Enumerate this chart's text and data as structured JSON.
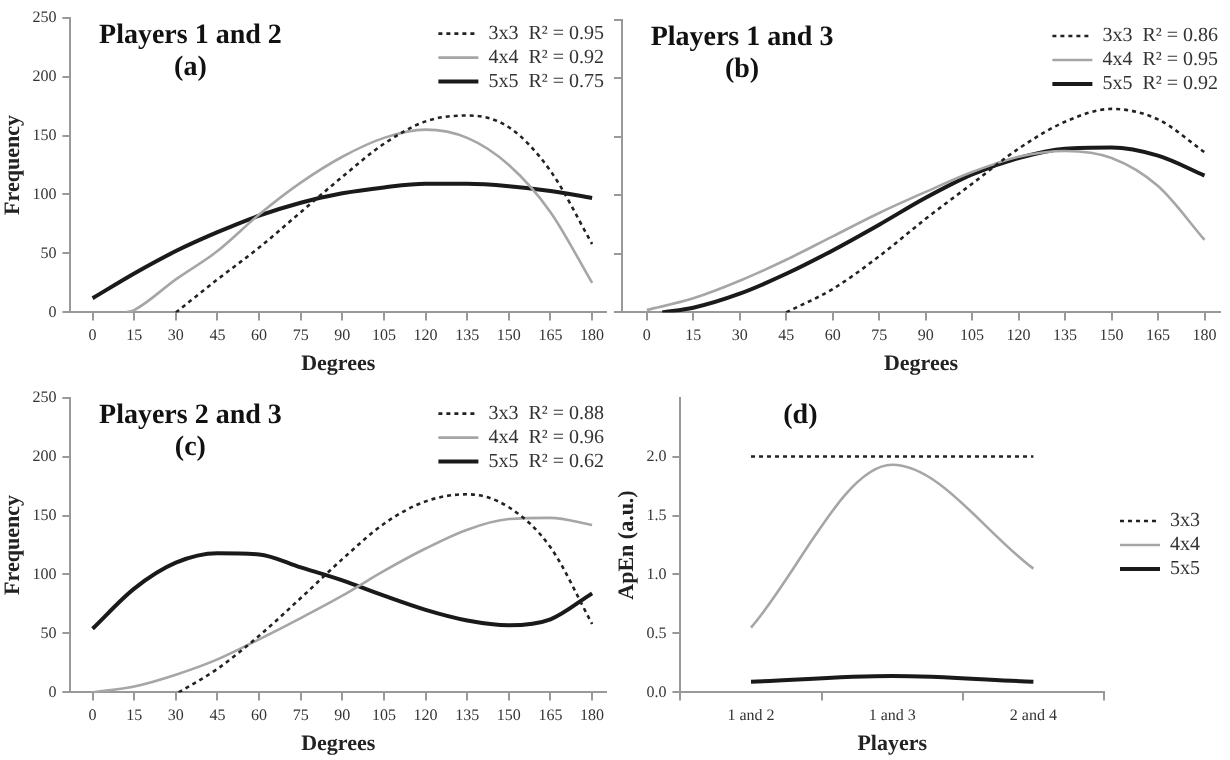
{
  "chart_data": [
    {
      "type": "line",
      "annotations": [
        "Players 1 and 2",
        "(a)"
      ],
      "xlabel": "Degrees",
      "ylabel": "Frequency",
      "xlim": [
        -8,
        185
      ],
      "xticks": [
        0,
        15,
        30,
        45,
        60,
        75,
        90,
        105,
        120,
        135,
        150,
        165,
        180
      ],
      "ylim": [
        0,
        250
      ],
      "yticks": [
        0,
        50,
        100,
        150,
        200,
        250
      ],
      "grid": false,
      "marker": "none",
      "legend": "top right",
      "series": [
        {
          "name": "3x3  R² = 0.95",
          "color": "#222222",
          "line_style": "dotted",
          "x": [
            30,
            45,
            60,
            75,
            90,
            105,
            120,
            135,
            150,
            165,
            180
          ],
          "values": [
            0,
            28,
            55,
            85,
            115,
            143,
            162,
            167,
            157,
            120,
            58
          ]
        },
        {
          "name": "4x4  R² = 0.92",
          "color": "#a6a6a6",
          "line_style": "solid",
          "x": [
            12,
            15,
            30,
            45,
            60,
            75,
            90,
            105,
            120,
            135,
            150,
            165,
            180
          ],
          "values": [
            0,
            2,
            28,
            52,
            83,
            110,
            132,
            148,
            155,
            148,
            125,
            85,
            25
          ]
        },
        {
          "name": "5x5  R² = 0.75",
          "color": "#1a1a1a",
          "line_style": "solid",
          "x": [
            0,
            15,
            30,
            45,
            60,
            75,
            90,
            105,
            120,
            135,
            150,
            165,
            180
          ],
          "values": [
            12,
            33,
            52,
            68,
            82,
            93,
            101,
            106,
            109,
            109,
            107,
            103,
            97
          ]
        }
      ]
    },
    {
      "type": "line",
      "annotations": [
        "Players 1 and 3",
        "(b)"
      ],
      "xlabel": "Degrees",
      "xlim": [
        -8,
        185
      ],
      "xticks": [
        0,
        15,
        30,
        45,
        60,
        75,
        90,
        105,
        120,
        135,
        150,
        165,
        180
      ],
      "ylim": [
        0,
        250
      ],
      "yticks": [
        0,
        50,
        100,
        150,
        200,
        250
      ],
      "tick_labels": "x",
      "grid": false,
      "marker": "none",
      "legend": "top right",
      "series": [
        {
          "name": "3x3  R² = 0.86",
          "color": "#222222",
          "line_style": "dotted",
          "x": [
            45,
            60,
            75,
            90,
            105,
            120,
            135,
            150,
            165,
            180
          ],
          "values": [
            0,
            20,
            48,
            80,
            110,
            140,
            163,
            174,
            165,
            137
          ]
        },
        {
          "name": "4x4  R² = 0.95",
          "color": "#a6a6a6",
          "line_style": "solid",
          "x": [
            0,
            15,
            30,
            45,
            60,
            75,
            90,
            105,
            120,
            135,
            150,
            165,
            180
          ],
          "values": [
            2,
            12,
            27,
            45,
            65,
            85,
            103,
            120,
            133,
            138,
            132,
            108,
            62
          ]
        },
        {
          "name": "5x5  R² = 0.92",
          "color": "#1a1a1a",
          "line_style": "solid",
          "x": [
            5,
            15,
            30,
            45,
            60,
            75,
            90,
            105,
            120,
            135,
            150,
            165,
            180
          ],
          "values": [
            0,
            4,
            16,
            33,
            53,
            75,
            98,
            118,
            132,
            140,
            141,
            134,
            117
          ]
        }
      ]
    },
    {
      "type": "line",
      "annotations": [
        "Players 2 and 3",
        "(c)"
      ],
      "xlabel": "Degrees",
      "ylabel": "Frequency",
      "xlim": [
        -8,
        185
      ],
      "xticks": [
        0,
        15,
        30,
        45,
        60,
        75,
        90,
        105,
        120,
        135,
        150,
        165,
        180
      ],
      "ylim": [
        0,
        250
      ],
      "yticks": [
        0,
        50,
        100,
        150,
        200,
        250
      ],
      "grid": false,
      "marker": "none",
      "legend": "top right",
      "series": [
        {
          "name": "3x3  R² = 0.88",
          "color": "#222222",
          "line_style": "dotted",
          "x": [
            31,
            45,
            60,
            75,
            90,
            105,
            120,
            135,
            150,
            165,
            180
          ],
          "values": [
            0,
            20,
            48,
            80,
            113,
            143,
            162,
            168,
            157,
            123,
            58
          ]
        },
        {
          "name": "4x4  R² = 0.96",
          "color": "#a6a6a6",
          "line_style": "solid",
          "x": [
            0,
            15,
            30,
            45,
            60,
            75,
            90,
            105,
            120,
            135,
            150,
            165,
            180
          ],
          "values": [
            0,
            5,
            15,
            28,
            45,
            63,
            82,
            103,
            122,
            138,
            147,
            148,
            142
          ]
        },
        {
          "name": "5x5  R² = 0.62",
          "color": "#1a1a1a",
          "line_style": "solid",
          "x": [
            0,
            15,
            30,
            45,
            60,
            75,
            90,
            105,
            120,
            135,
            150,
            165,
            180
          ],
          "values": [
            54,
            88,
            110,
            118,
            117,
            106,
            95,
            82,
            70,
            61,
            57,
            62,
            84
          ]
        }
      ]
    },
    {
      "type": "line",
      "annotations": [
        "(d)"
      ],
      "xlabel": "Players",
      "ylabel": "ApEn (a.u.)",
      "categories": [
        "1 and 2",
        "1 and 3",
        "2 and 4"
      ],
      "ylim": [
        0,
        2.5
      ],
      "yticks": [
        {
          "value": 0,
          "label": "0.0"
        },
        {
          "value": 0.5,
          "label": "0.5"
        },
        {
          "value": 1,
          "label": "1.0"
        },
        {
          "value": 1.5,
          "label": "1.5"
        },
        {
          "value": 2,
          "label": "2.0"
        }
      ],
      "grid": false,
      "marker": "none",
      "legend": "right",
      "series": [
        {
          "name": "3x3",
          "color": "#222222",
          "line_style": "dotted",
          "values": [
            2.0,
            2.0,
            2.0
          ]
        },
        {
          "name": "4x4",
          "color": "#a6a6a6",
          "line_style": "solid",
          "values": [
            0.55,
            1.93,
            1.05
          ]
        },
        {
          "name": "5x5",
          "color": "#1a1a1a",
          "line_style": "solid",
          "values": [
            0.09,
            0.14,
            0.09
          ]
        }
      ]
    }
  ]
}
